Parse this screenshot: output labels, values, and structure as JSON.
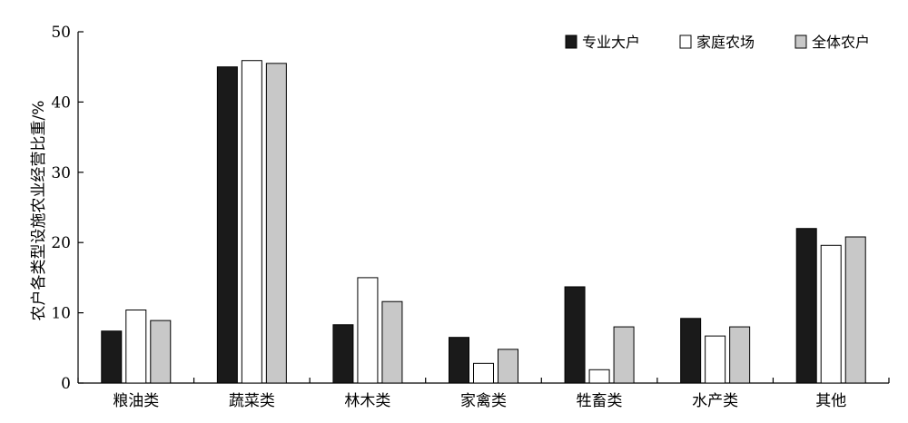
{
  "chart_data": {
    "type": "bar",
    "categories": [
      "粮油类",
      "蔬菜类",
      "林木类",
      "家禽类",
      "牲畜类",
      "水产类",
      "其他"
    ],
    "series": [
      {
        "name": "专业大户",
        "color": "#1a1a1a",
        "values": [
          7.4,
          45.0,
          8.3,
          6.5,
          13.7,
          9.2,
          22.0
        ]
      },
      {
        "name": "家庭农场",
        "color": "#ffffff",
        "values": [
          10.4,
          45.9,
          15.0,
          2.8,
          1.9,
          6.7,
          19.6
        ]
      },
      {
        "name": "全体农户",
        "color": "#c8c8c8",
        "values": [
          8.9,
          45.5,
          11.6,
          4.8,
          8.0,
          8.0,
          20.8
        ]
      }
    ],
    "ylabel": "农户各类型设施农业经营比重/%",
    "ylim": [
      0,
      50
    ],
    "yticks": [
      0,
      10,
      20,
      30,
      40,
      50
    ],
    "legend_position": "top-right",
    "grid": false
  }
}
